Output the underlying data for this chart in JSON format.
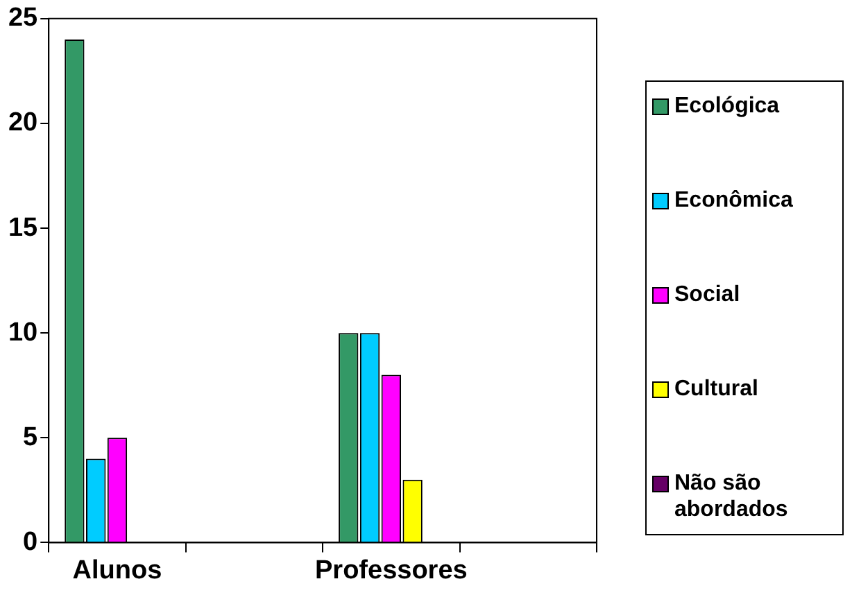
{
  "chart_data": {
    "type": "bar",
    "categories": [
      "Alunos",
      null,
      "Professores",
      null
    ],
    "series": [
      {
        "name": "Ecológica",
        "color": "#339966",
        "values": [
          24,
          null,
          10,
          null
        ]
      },
      {
        "name": "Econômica",
        "color": "#00ccff",
        "values": [
          4,
          null,
          10,
          null
        ]
      },
      {
        "name": "Social",
        "color": "#ff00ff",
        "values": [
          5,
          null,
          8,
          null
        ]
      },
      {
        "name": "Cultural",
        "color": "#ffff00",
        "values": [
          0,
          null,
          3,
          null
        ]
      },
      {
        "name": "Não são abordados",
        "color": "#660066",
        "values": [
          0,
          null,
          0,
          null
        ]
      }
    ],
    "ylim": [
      0,
      25
    ],
    "yticks": [
      0,
      5,
      10,
      15,
      20,
      25
    ],
    "grid": false,
    "legend": "right"
  }
}
